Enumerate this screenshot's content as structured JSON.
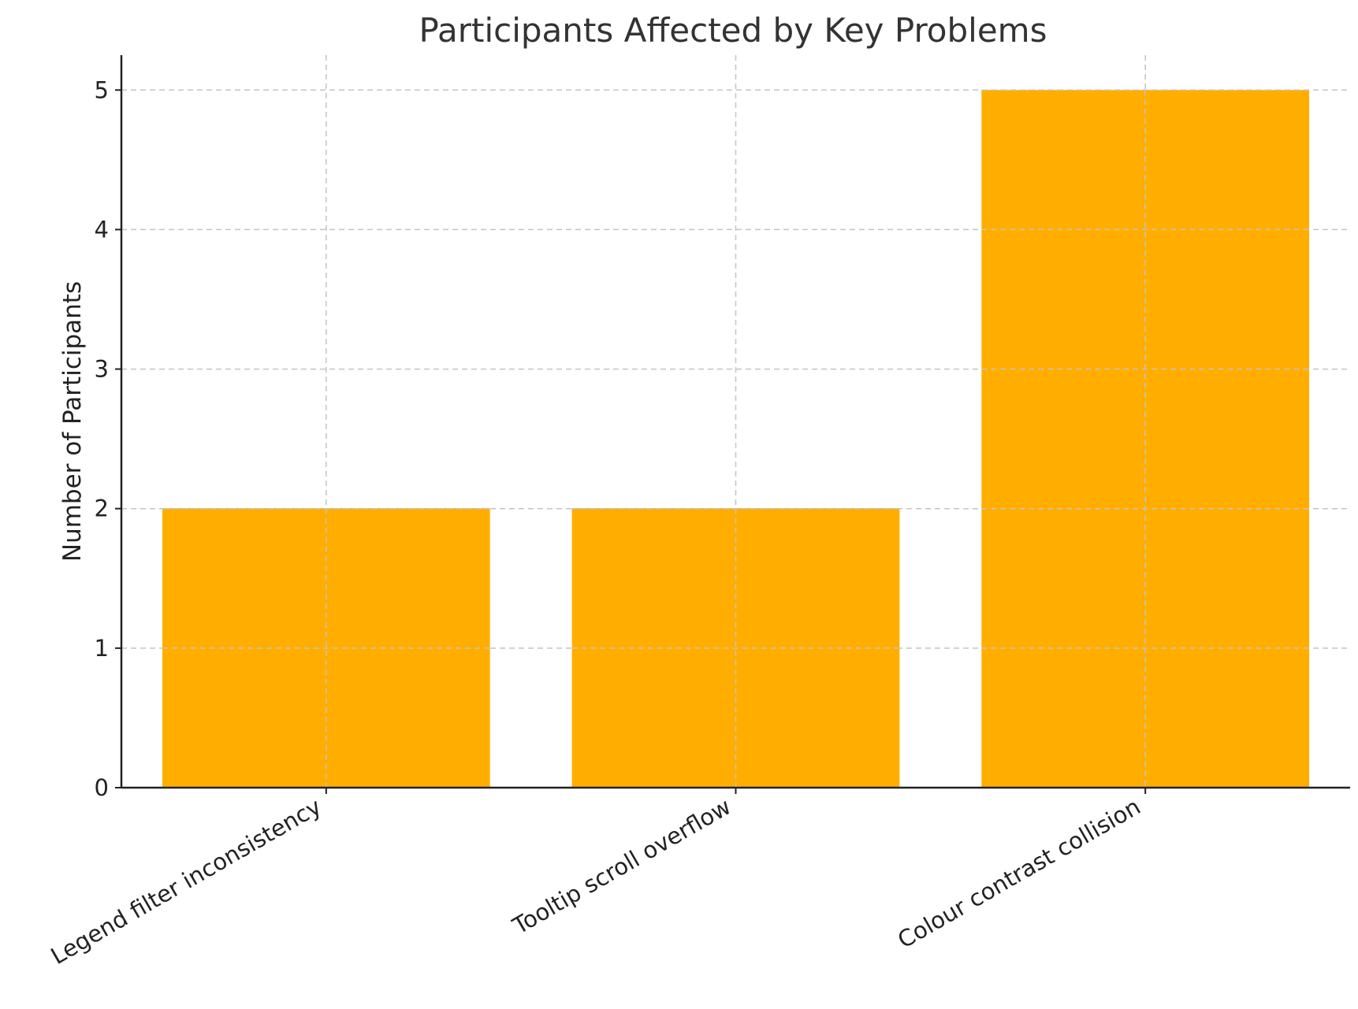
{
  "chart_data": {
    "type": "bar",
    "title": "Participants Affected by Key Problems",
    "xlabel": "",
    "ylabel": "Number of Participants",
    "categories": [
      "Legend filter inconsistency",
      "Tooltip scroll overflow",
      "Colour contrast collision"
    ],
    "values": [
      2,
      2,
      5
    ],
    "ylim": [
      0,
      5.25
    ],
    "yticks": [
      0,
      1,
      2,
      3,
      4,
      5
    ],
    "bar_color": "#FFAE00",
    "grid": true,
    "x_tick_rotation_deg": 30
  }
}
